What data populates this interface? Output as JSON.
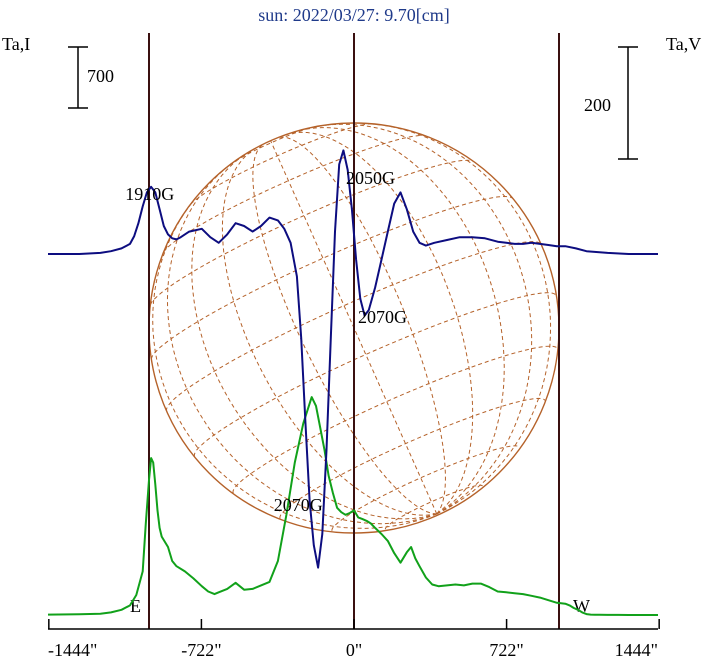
{
  "chart_data": {
    "type": "line",
    "title": "sun: 2022/03/27: 9.70[cm]",
    "left_axis_label": "Ta,I",
    "right_axis_label": "Ta,V",
    "left_scale_bar_label": "700",
    "right_scale_bar_label": "200",
    "x_unit": "arcsec",
    "x_ticks": [
      {
        "value": -1444,
        "label": "-1444\""
      },
      {
        "value": -722,
        "label": "-722\""
      },
      {
        "value": 0,
        "label": "0\""
      },
      {
        "value": 722,
        "label": "722\""
      },
      {
        "value": 1444,
        "label": "1444\""
      }
    ],
    "xlim": [
      -1465,
      1465
    ],
    "vertical_markers": [
      {
        "x": -970,
        "label": "E"
      },
      {
        "x": 0,
        "label": ""
      },
      {
        "x": 970,
        "label": "W"
      }
    ],
    "solar_disk": {
      "center_x": 0,
      "radius": 970,
      "grid_color": "#b5622a"
    },
    "annotations": [
      {
        "text": "1910G",
        "x": -950,
        "series": "Ta,V"
      },
      {
        "text": "2050G",
        "x": -85,
        "series": "Ta,V"
      },
      {
        "text": "2070G",
        "x": 5,
        "series": "Ta,V"
      },
      {
        "text": "2070G",
        "x": -200,
        "series": "Ta,V"
      }
    ],
    "series": [
      {
        "name": "Ta,I",
        "color": "#11a11a",
        "x": [
          -1465,
          -1300,
          -1200,
          -1150,
          -1100,
          -1060,
          -1030,
          -1000,
          -985,
          -970,
          -960,
          -950,
          -940,
          -930,
          -920,
          -910,
          -880,
          -860,
          -840,
          -800,
          -760,
          -720,
          -690,
          -660,
          -640,
          -600,
          -560,
          -520,
          -480,
          -440,
          -400,
          -360,
          -320,
          -280,
          -240,
          -200,
          -180,
          -160,
          -140,
          -120,
          -100,
          -80,
          -60,
          -40,
          -20,
          0,
          20,
          40,
          60,
          80,
          100,
          130,
          160,
          190,
          220,
          250,
          270,
          290,
          310,
          340,
          370,
          400,
          440,
          480,
          520,
          560,
          600,
          640,
          680,
          720,
          760,
          800,
          840,
          880,
          920,
          960,
          1000,
          1020,
          1040,
          1060,
          1080,
          1100,
          1120,
          1140,
          1160,
          1200,
          1250,
          1300,
          1350,
          1400,
          1465
        ],
        "y": [
          5,
          8,
          15,
          30,
          60,
          110,
          230,
          500,
          1050,
          1550,
          1800,
          1750,
          1500,
          1200,
          1000,
          900,
          780,
          620,
          560,
          500,
          420,
          330,
          270,
          240,
          260,
          300,
          370,
          290,
          300,
          340,
          380,
          620,
          1150,
          1750,
          2200,
          2500,
          2400,
          2150,
          1900,
          1600,
          1400,
          1230,
          1180,
          1150,
          1170,
          1200,
          1120,
          1100,
          1080,
          1050,
          1000,
          930,
          850,
          710,
          600,
          720,
          780,
          650,
          560,
          430,
          350,
          330,
          340,
          350,
          340,
          360,
          360,
          320,
          270,
          260,
          250,
          240,
          220,
          200,
          170,
          140,
          130,
          110,
          80,
          60,
          30,
          10,
          5,
          3,
          2,
          1,
          1,
          0,
          0,
          0,
          0
        ]
      },
      {
        "name": "Ta,V",
        "color": "#0d0d80",
        "x": [
          -1465,
          -1300,
          -1200,
          -1150,
          -1100,
          -1060,
          -1040,
          -1020,
          -1000,
          -980,
          -960,
          -940,
          -920,
          -900,
          -880,
          -860,
          -840,
          -820,
          -780,
          -720,
          -680,
          -640,
          -600,
          -560,
          -520,
          -480,
          -440,
          -400,
          -360,
          -330,
          -300,
          -270,
          -250,
          -230,
          -210,
          -190,
          -170,
          -150,
          -130,
          -110,
          -90,
          -70,
          -50,
          -30,
          -10,
          10,
          30,
          50,
          70,
          100,
          130,
          160,
          190,
          220,
          250,
          280,
          310,
          340,
          380,
          440,
          500,
          560,
          620,
          680,
          720,
          760,
          800,
          840,
          880,
          920,
          960,
          1000,
          1050,
          1100,
          1200,
          1300,
          1465
        ],
        "y": [
          0,
          0,
          2,
          5,
          10,
          18,
          32,
          55,
          85,
          110,
          120,
          110,
          80,
          50,
          35,
          28,
          26,
          30,
          40,
          45,
          30,
          20,
          35,
          55,
          50,
          40,
          50,
          65,
          60,
          45,
          20,
          -40,
          -150,
          -300,
          -440,
          -520,
          -560,
          -500,
          -350,
          -150,
          40,
          160,
          185,
          150,
          80,
          -10,
          -80,
          -110,
          -100,
          -60,
          -10,
          40,
          90,
          110,
          80,
          40,
          20,
          15,
          20,
          25,
          30,
          30,
          28,
          22,
          20,
          18,
          18,
          20,
          18,
          16,
          14,
          14,
          10,
          5,
          2,
          0,
          0
        ]
      }
    ]
  }
}
